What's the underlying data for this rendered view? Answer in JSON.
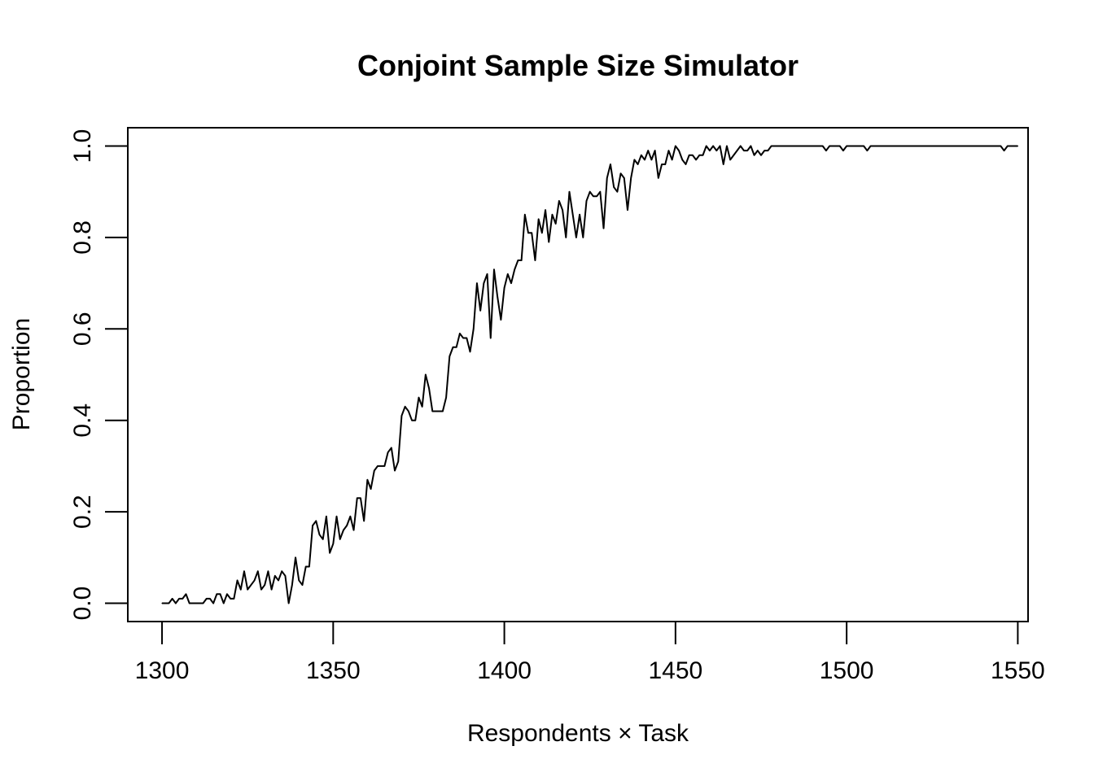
{
  "chart_data": {
    "type": "line",
    "title": "Conjoint Sample Size Simulator",
    "xlabel": "Respondents × Task",
    "ylabel": "Proportion",
    "xlim": [
      1290,
      1553
    ],
    "ylim": [
      -0.04,
      1.04
    ],
    "x_ticks": [
      1300,
      1350,
      1400,
      1450,
      1500,
      1550
    ],
    "y_ticks": [
      0.0,
      0.2,
      0.4,
      0.6,
      0.8,
      1.0
    ],
    "x_tick_labels": [
      "1300",
      "1350",
      "1400",
      "1450",
      "1500",
      "1550"
    ],
    "y_tick_labels": [
      "0.0",
      "0.2",
      "0.4",
      "0.6",
      "0.8",
      "1.0"
    ],
    "grid": false,
    "legend": "none",
    "line_color": "#000000",
    "series": [
      {
        "x_start": 1300,
        "x_step": 1,
        "values": [
          0.0,
          0.0,
          0.0,
          0.01,
          0.0,
          0.01,
          0.01,
          0.02,
          0.0,
          0.0,
          0.0,
          0.0,
          0.0,
          0.01,
          0.01,
          0.0,
          0.02,
          0.02,
          0.0,
          0.02,
          0.01,
          0.01,
          0.05,
          0.03,
          0.07,
          0.03,
          0.04,
          0.05,
          0.07,
          0.03,
          0.04,
          0.07,
          0.03,
          0.06,
          0.05,
          0.07,
          0.06,
          0.0,
          0.04,
          0.1,
          0.05,
          0.04,
          0.08,
          0.08,
          0.17,
          0.18,
          0.15,
          0.14,
          0.19,
          0.11,
          0.13,
          0.19,
          0.14,
          0.16,
          0.17,
          0.19,
          0.16,
          0.23,
          0.23,
          0.18,
          0.27,
          0.25,
          0.29,
          0.3,
          0.3,
          0.3,
          0.33,
          0.34,
          0.29,
          0.31,
          0.41,
          0.43,
          0.42,
          0.4,
          0.4,
          0.45,
          0.43,
          0.5,
          0.47,
          0.42,
          0.42,
          0.42,
          0.42,
          0.45,
          0.54,
          0.56,
          0.56,
          0.59,
          0.58,
          0.58,
          0.55,
          0.6,
          0.7,
          0.64,
          0.7,
          0.72,
          0.58,
          0.73,
          0.67,
          0.62,
          0.69,
          0.72,
          0.7,
          0.73,
          0.75,
          0.75,
          0.85,
          0.81,
          0.81,
          0.75,
          0.84,
          0.81,
          0.86,
          0.79,
          0.85,
          0.83,
          0.88,
          0.86,
          0.8,
          0.9,
          0.85,
          0.8,
          0.85,
          0.8,
          0.88,
          0.9,
          0.89,
          0.89,
          0.9,
          0.82,
          0.93,
          0.96,
          0.91,
          0.9,
          0.94,
          0.93,
          0.86,
          0.93,
          0.97,
          0.96,
          0.98,
          0.97,
          0.99,
          0.97,
          0.99,
          0.93,
          0.96,
          0.96,
          0.99,
          0.97,
          1.0,
          0.99,
          0.97,
          0.96,
          0.98,
          0.98,
          0.97,
          0.98,
          0.98,
          1.0,
          0.99,
          1.0,
          0.99,
          1.0,
          0.96,
          1.0,
          0.97,
          0.98,
          0.99,
          1.0,
          0.99,
          0.99,
          1.0,
          0.98,
          0.99,
          0.98,
          0.99,
          0.99,
          1.0,
          1.0,
          1.0,
          1.0,
          1.0,
          1.0,
          1.0,
          1.0,
          1.0,
          1.0,
          1.0,
          1.0,
          1.0,
          1.0,
          1.0,
          1.0,
          0.99,
          1.0,
          1.0,
          1.0,
          1.0,
          0.99,
          1.0,
          1.0,
          1.0,
          1.0,
          1.0,
          1.0,
          0.99,
          1.0,
          1.0,
          1.0,
          1.0,
          1.0,
          1.0,
          1.0,
          1.0,
          1.0,
          1.0,
          1.0,
          1.0,
          1.0,
          1.0,
          1.0,
          1.0,
          1.0,
          1.0,
          1.0,
          1.0,
          1.0,
          1.0,
          1.0,
          1.0,
          1.0,
          1.0,
          1.0,
          1.0,
          1.0,
          1.0,
          1.0,
          1.0,
          1.0,
          1.0,
          1.0,
          1.0,
          1.0,
          1.0,
          1.0,
          0.99,
          1.0,
          1.0,
          1.0,
          1.0
        ]
      }
    ]
  }
}
